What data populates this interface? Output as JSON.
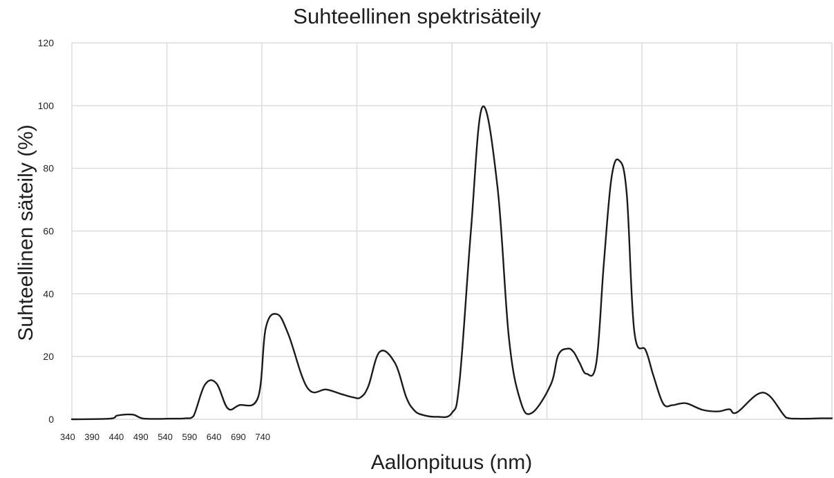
{
  "chart_data": {
    "type": "line",
    "title": "Suhteellinen spektrisäteily",
    "xlabel": "Aallonpituus (nm)",
    "ylabel": "Suhteellinen säteily (%)",
    "ylim": [
      0,
      120
    ],
    "y_ticks": [
      "0",
      "20",
      "40",
      "60",
      "80",
      "100",
      "120"
    ],
    "x_ticks": [
      "340",
      "390",
      "440",
      "490",
      "540",
      "590",
      "640",
      "690",
      "740"
    ],
    "grid": true,
    "legend": "none",
    "line_color": "#1a1a1a",
    "grid_color": "#dcdcdc",
    "series": [
      {
        "x": [
          0,
          0.05,
          0.06,
          0.08,
          0.095,
          0.13,
          0.15,
          0.16,
          0.175,
          0.19,
          0.205,
          0.22,
          0.245,
          0.255,
          0.27,
          0.285,
          0.31,
          0.335,
          0.355,
          0.37,
          0.38,
          0.39,
          0.405,
          0.425,
          0.44,
          0.45,
          0.46,
          0.48,
          0.5,
          0.51,
          0.525,
          0.54,
          0.56,
          0.575,
          0.59,
          0.605,
          0.63,
          0.64,
          0.652,
          0.66,
          0.668,
          0.677,
          0.69,
          0.7,
          0.71,
          0.72,
          0.73,
          0.74,
          0.755,
          0.765,
          0.778,
          0.79,
          0.8,
          0.81,
          0.83,
          0.85,
          0.865,
          0.875,
          0.91,
          0.94,
          0.955,
          0.97,
          0.985,
          1.0
        ],
        "y": [
          0,
          0.2,
          1.2,
          1.5,
          0.2,
          0.2,
          0.3,
          1.0,
          11.0,
          11.5,
          3.5,
          4.5,
          7.0,
          29.0,
          33.5,
          27.0,
          10.0,
          9.5,
          8.0,
          7.0,
          7.0,
          10.5,
          21.5,
          18.0,
          7.0,
          3.0,
          1.5,
          0.8,
          2.0,
          12.0,
          60.0,
          99.5,
          74.0,
          26.0,
          6.0,
          2.0,
          11.0,
          20.5,
          22.5,
          21.5,
          18.0,
          14.5,
          18.0,
          50.0,
          77.0,
          82.5,
          72.0,
          28.0,
          22.0,
          14.0,
          5.0,
          4.5,
          5.0,
          5.0,
          3.0,
          2.5,
          3.2,
          2.2,
          8.5,
          0.5,
          0.2,
          0.2,
          0.3,
          0.3
        ]
      }
    ]
  }
}
